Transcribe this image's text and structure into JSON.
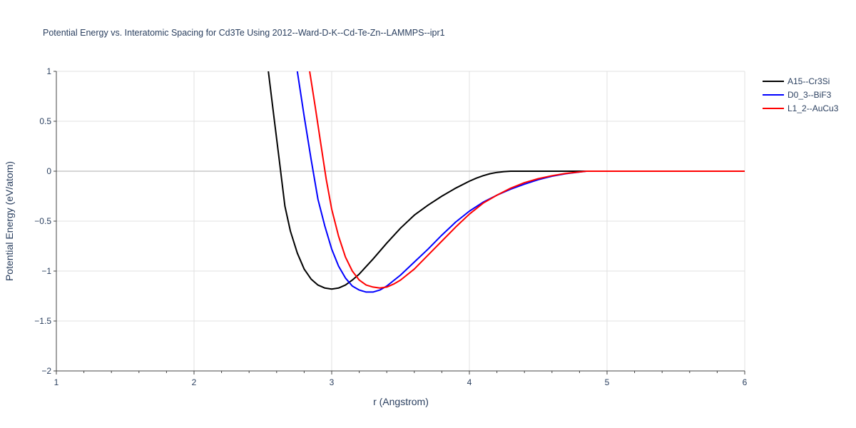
{
  "chart_data": {
    "type": "line",
    "title": "Potential Energy vs. Interatomic Spacing for Cd3Te Using 2012--Ward-D-K--Cd-Te-Zn--LAMMPS--ipr1",
    "xlabel": "r (Angstrom)",
    "ylabel": "Potential Energy (eV/atom)",
    "xlim": [
      1,
      6
    ],
    "ylim": [
      -2,
      1
    ],
    "xticks": [
      "1",
      "2",
      "3",
      "4",
      "5",
      "6"
    ],
    "yticks": [
      "−2",
      "−1.5",
      "−1",
      "−0.5",
      "0",
      "0.5",
      "1"
    ],
    "xtick_values": [
      1,
      2,
      3,
      4,
      5,
      6
    ],
    "ytick_values": [
      -2,
      -1.5,
      -1,
      -0.5,
      0,
      0.5,
      1
    ],
    "grid": true,
    "legend_position": "top-right",
    "series": [
      {
        "name": "A15--Cr3Si",
        "color": "#000000",
        "x": [
          2.54,
          2.58,
          2.62,
          2.66,
          2.7,
          2.75,
          2.8,
          2.85,
          2.9,
          2.95,
          3.0,
          3.05,
          3.1,
          3.15,
          3.2,
          3.3,
          3.4,
          3.5,
          3.6,
          3.7,
          3.8,
          3.9,
          4.0,
          4.05,
          4.1,
          4.15,
          4.2,
          4.25,
          4.3,
          4.35,
          4.5,
          5.0,
          6.0
        ],
        "y": [
          1.0,
          0.55,
          0.1,
          -0.35,
          -0.6,
          -0.82,
          -0.98,
          -1.08,
          -1.14,
          -1.17,
          -1.18,
          -1.17,
          -1.14,
          -1.09,
          -1.03,
          -0.88,
          -0.72,
          -0.57,
          -0.44,
          -0.34,
          -0.25,
          -0.17,
          -0.1,
          -0.07,
          -0.045,
          -0.025,
          -0.012,
          -0.004,
          0.0,
          0.0,
          0.0,
          0.0,
          0.0
        ]
      },
      {
        "name": "D0_3--BiF3",
        "color": "#0000ff",
        "x": [
          2.75,
          2.8,
          2.85,
          2.9,
          2.95,
          3.0,
          3.05,
          3.1,
          3.15,
          3.2,
          3.25,
          3.3,
          3.35,
          3.4,
          3.5,
          3.6,
          3.7,
          3.8,
          3.9,
          4.0,
          4.1,
          4.2,
          4.3,
          4.4,
          4.5,
          4.6,
          4.7,
          4.8,
          4.85,
          5.0,
          6.0
        ],
        "y": [
          1.0,
          0.55,
          0.12,
          -0.28,
          -0.55,
          -0.78,
          -0.95,
          -1.07,
          -1.15,
          -1.19,
          -1.21,
          -1.21,
          -1.19,
          -1.15,
          -1.04,
          -0.91,
          -0.78,
          -0.64,
          -0.51,
          -0.4,
          -0.31,
          -0.24,
          -0.18,
          -0.13,
          -0.085,
          -0.05,
          -0.025,
          -0.008,
          0.0,
          0.0,
          0.0
        ]
      },
      {
        "name": "L1_2--AuCu3",
        "color": "#ff0000",
        "x": [
          2.84,
          2.88,
          2.92,
          2.96,
          3.0,
          3.05,
          3.1,
          3.15,
          3.2,
          3.25,
          3.3,
          3.35,
          3.4,
          3.45,
          3.5,
          3.6,
          3.7,
          3.8,
          3.9,
          4.0,
          4.1,
          4.2,
          4.3,
          4.4,
          4.5,
          4.6,
          4.7,
          4.8,
          4.85,
          5.0,
          6.0
        ],
        "y": [
          1.0,
          0.65,
          0.28,
          -0.08,
          -0.38,
          -0.65,
          -0.86,
          -1.0,
          -1.09,
          -1.14,
          -1.16,
          -1.17,
          -1.16,
          -1.13,
          -1.09,
          -0.98,
          -0.84,
          -0.7,
          -0.56,
          -0.43,
          -0.32,
          -0.24,
          -0.17,
          -0.115,
          -0.075,
          -0.045,
          -0.022,
          -0.007,
          0.0,
          0.0,
          0.0
        ]
      }
    ]
  }
}
